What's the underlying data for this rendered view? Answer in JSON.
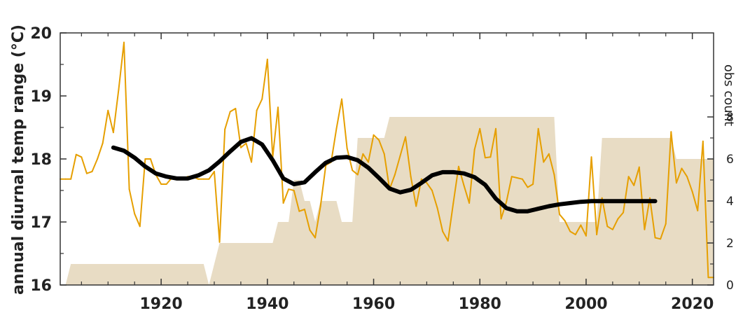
{
  "chart_data": {
    "type": "line",
    "title": "",
    "xlabel": "",
    "ylabel": "annual diurnal temp range (°C)",
    "y2label": "obs count",
    "xlim": [
      1901,
      2024
    ],
    "ylim": [
      16,
      20
    ],
    "y2lim": [
      0,
      12
    ],
    "xticks": [
      1920,
      1940,
      1960,
      1980,
      2000,
      2020
    ],
    "yticks": [
      16,
      17,
      18,
      19,
      20
    ],
    "y2ticks": [
      0,
      2,
      4,
      6,
      8
    ],
    "grid": false,
    "legend": "none",
    "colors": {
      "annual": "#E69F00",
      "smoothed": "#000000",
      "obs_count": "#E8DCC4",
      "axis": "#333333"
    },
    "series": [
      {
        "kind": "annual",
        "axis": "left",
        "x": [
          1901,
          1902,
          1903,
          1904,
          1905,
          1906,
          1907,
          1908,
          1909,
          1910,
          1911,
          1912,
          1913,
          1914,
          1915,
          1916,
          1917,
          1918,
          1919,
          1920,
          1921,
          1922,
          1923,
          1924,
          1925,
          1926,
          1927,
          1928,
          1929,
          1930,
          1931,
          1932,
          1933,
          1934,
          1935,
          1936,
          1937,
          1938,
          1939,
          1940,
          1941,
          1942,
          1943,
          1944,
          1945,
          1946,
          1947,
          1948,
          1949,
          1950,
          1951,
          1952,
          1953,
          1954,
          1955,
          1956,
          1957,
          1958,
          1959,
          1960,
          1961,
          1962,
          1963,
          1964,
          1965,
          1966,
          1967,
          1968,
          1969,
          1970,
          1971,
          1972,
          1973,
          1974,
          1975,
          1976,
          1977,
          1978,
          1979,
          1980,
          1981,
          1982,
          1983,
          1984,
          1985,
          1986,
          1987,
          1988,
          1989,
          1990,
          1991,
          1992,
          1993,
          1994,
          1995,
          1996,
          1997,
          1998,
          1999,
          2000,
          2001,
          2002,
          2003,
          2004,
          2005,
          2006,
          2007,
          2008,
          2009,
          2010,
          2011,
          2012,
          2013,
          2014,
          2015,
          2016,
          2017,
          2018,
          2019,
          2020,
          2021,
          2022,
          2023,
          2024
        ],
        "values": [
          17.68,
          17.68,
          17.68,
          18.07,
          18.03,
          17.77,
          17.8,
          18.0,
          18.25,
          18.77,
          18.42,
          19.1,
          19.85,
          17.52,
          17.13,
          16.93,
          18.0,
          18.0,
          17.75,
          17.6,
          17.6,
          17.7,
          17.68,
          17.68,
          17.72,
          17.72,
          17.68,
          17.68,
          17.68,
          17.8,
          16.68,
          18.47,
          18.75,
          18.8,
          18.18,
          18.25,
          17.95,
          18.77,
          18.95,
          19.58,
          18.03,
          18.82,
          17.3,
          17.52,
          17.5,
          17.17,
          17.2,
          16.87,
          16.75,
          17.25,
          17.9,
          17.95,
          18.48,
          18.95,
          18.17,
          17.82,
          17.75,
          18.08,
          17.95,
          18.38,
          18.3,
          18.08,
          17.52,
          17.75,
          18.05,
          18.35,
          17.72,
          17.25,
          17.68,
          17.62,
          17.5,
          17.22,
          16.85,
          16.7,
          17.3,
          17.88,
          17.58,
          17.3,
          18.15,
          18.48,
          18.02,
          18.03,
          18.48,
          17.05,
          17.32,
          17.72,
          17.7,
          17.68,
          17.55,
          17.6,
          18.48,
          17.95,
          18.08,
          17.75,
          17.12,
          17.02,
          16.85,
          16.8,
          16.95,
          16.78,
          18.03,
          16.8,
          17.38,
          16.93,
          16.88,
          17.05,
          17.15,
          17.72,
          17.58,
          17.87,
          16.88,
          17.38,
          16.75,
          16.73,
          16.97,
          18.43,
          17.62,
          17.85,
          17.72,
          17.48,
          17.18,
          18.28,
          16.12,
          16.12
        ]
      },
      {
        "kind": "smoothed",
        "axis": "left",
        "x": [
          1911,
          1913,
          1915,
          1917,
          1919,
          1921,
          1923,
          1925,
          1927,
          1929,
          1931,
          1933,
          1935,
          1937,
          1939,
          1941,
          1943,
          1945,
          1947,
          1949,
          1951,
          1953,
          1955,
          1957,
          1959,
          1961,
          1963,
          1965,
          1967,
          1969,
          1971,
          1973,
          1975,
          1977,
          1979,
          1981,
          1983,
          1985,
          1987,
          1989,
          1991,
          1993,
          1995,
          1997,
          1999,
          2001,
          2003,
          2005,
          2007,
          2009,
          2011,
          2013
        ],
        "values": [
          18.18,
          18.13,
          18.02,
          17.88,
          17.77,
          17.72,
          17.69,
          17.69,
          17.74,
          17.82,
          17.96,
          18.12,
          18.27,
          18.33,
          18.23,
          17.98,
          17.69,
          17.6,
          17.63,
          17.79,
          17.94,
          18.02,
          18.03,
          17.98,
          17.86,
          17.7,
          17.53,
          17.47,
          17.51,
          17.62,
          17.74,
          17.79,
          17.79,
          17.77,
          17.71,
          17.59,
          17.37,
          17.22,
          17.17,
          17.17,
          17.21,
          17.25,
          17.28,
          17.3,
          17.32,
          17.33,
          17.33,
          17.33,
          17.33,
          17.33,
          17.33,
          17.33
        ]
      },
      {
        "kind": "obs_count",
        "axis": "right",
        "x": [
          1901,
          1902,
          1903,
          1904,
          1928,
          1929,
          1930,
          1931,
          1932,
          1941,
          1942,
          1943,
          1944,
          1945,
          1946,
          1947,
          1948,
          1949,
          1950,
          1951,
          1953,
          1954,
          1955,
          1956,
          1957,
          1958,
          1960,
          1961,
          1962,
          1963,
          1964,
          1965,
          1966,
          1967,
          1968,
          1983,
          1984,
          1990,
          1991,
          1992,
          1993,
          1994,
          1995,
          1996,
          1997,
          1998,
          1999,
          2000,
          2001,
          2002,
          2003,
          2004,
          2010,
          2011,
          2012,
          2013,
          2014,
          2016,
          2017,
          2018,
          2019,
          2020,
          2021,
          2022,
          2023,
          2024
        ],
        "values": [
          0,
          0,
          1,
          1,
          1,
          0,
          1,
          2,
          2,
          2,
          3,
          3,
          3,
          5,
          5,
          4,
          4,
          3,
          4,
          4,
          4,
          3,
          3,
          3,
          7,
          7,
          7,
          7,
          7,
          8,
          8,
          8,
          8,
          8,
          8,
          8,
          8,
          8,
          8,
          8,
          8,
          8,
          3,
          3,
          3,
          3,
          3,
          3,
          3,
          3,
          7,
          7,
          7,
          7,
          7,
          7,
          7,
          7,
          6,
          6,
          6,
          6,
          6,
          6,
          6,
          6
        ]
      }
    ]
  }
}
